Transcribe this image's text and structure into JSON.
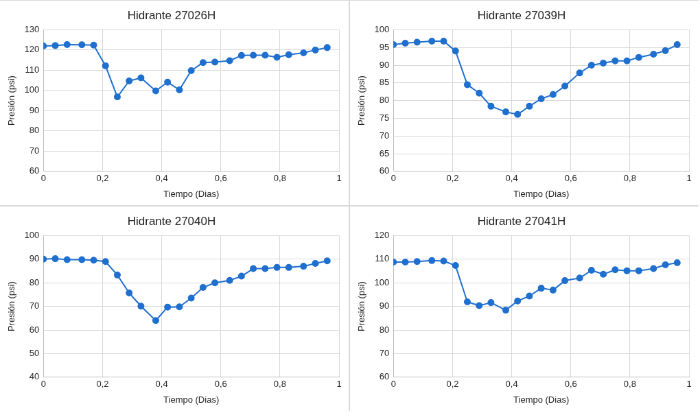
{
  "chart_data": [
    {
      "type": "line",
      "title": "Hidrante 27026H",
      "xlabel": "Tiempo (Dias)",
      "ylabel": "Presión (psi)",
      "x": [
        0,
        0.04,
        0.08,
        0.13,
        0.17,
        0.21,
        0.25,
        0.29,
        0.33,
        0.38,
        0.42,
        0.46,
        0.5,
        0.54,
        0.58,
        0.63,
        0.67,
        0.71,
        0.75,
        0.79,
        0.83,
        0.88,
        0.92,
        0.96
      ],
      "series": [
        {
          "color": "#1f6fcf",
          "values": [
            122,
            122.2,
            122.7,
            122.6,
            122.4,
            112.2,
            96.8,
            104.7,
            106.2,
            99.8,
            104.1,
            100.3,
            109.8,
            113.8,
            114,
            114.7,
            117.3,
            117.4,
            117.4,
            116.4,
            117.7,
            118.6,
            120,
            121.2
          ]
        }
      ],
      "xlim": [
        0,
        1
      ],
      "xticks": [
        {
          "value": 0,
          "label": "0"
        },
        {
          "value": 0.2,
          "label": "0,2"
        },
        {
          "value": 0.4,
          "label": "0,4"
        },
        {
          "value": 0.6,
          "label": "0,6"
        },
        {
          "value": 0.8,
          "label": "0,8"
        },
        {
          "value": 1,
          "label": "1"
        }
      ],
      "ylim": [
        60,
        130
      ],
      "yticks": [
        60,
        70,
        80,
        90,
        100,
        110,
        120,
        130
      ],
      "grid": true,
      "legend": false,
      "marker": "circle",
      "line_style": "solid"
    },
    {
      "type": "line",
      "title": "Hidrante 27039H",
      "xlabel": "Tiempo (Dias)",
      "ylabel": "Presión (psi)",
      "x": [
        0,
        0.04,
        0.08,
        0.13,
        0.17,
        0.21,
        0.25,
        0.29,
        0.33,
        0.38,
        0.42,
        0.46,
        0.5,
        0.54,
        0.58,
        0.63,
        0.67,
        0.71,
        0.75,
        0.79,
        0.83,
        0.88,
        0.92,
        0.96
      ],
      "series": [
        {
          "color": "#1f6fcf",
          "values": [
            95.8,
            96.2,
            96.5,
            96.8,
            96.8,
            94,
            84.5,
            82.1,
            78.4,
            76.8,
            76.1,
            78.4,
            80.5,
            81.7,
            84.1,
            87.8,
            90,
            90.6,
            91.2,
            91.2,
            92.2,
            93.1,
            94.1,
            95.8
          ]
        }
      ],
      "xlim": [
        0,
        1
      ],
      "xticks": [
        {
          "value": 0,
          "label": "0"
        },
        {
          "value": 0.2,
          "label": "0,2"
        },
        {
          "value": 0.4,
          "label": "0,4"
        },
        {
          "value": 0.6,
          "label": "0,6"
        },
        {
          "value": 0.8,
          "label": "0,8"
        },
        {
          "value": 1,
          "label": "1"
        }
      ],
      "ylim": [
        60,
        100
      ],
      "yticks": [
        60,
        65,
        70,
        75,
        80,
        85,
        90,
        95,
        100
      ],
      "grid": true,
      "legend": false,
      "marker": "circle",
      "line_style": "solid"
    },
    {
      "type": "line",
      "title": "Hidrante 27040H",
      "xlabel": "Tiempo (Dias)",
      "ylabel": "Presión (psi)",
      "x": [
        0,
        0.04,
        0.08,
        0.13,
        0.17,
        0.21,
        0.25,
        0.29,
        0.33,
        0.38,
        0.42,
        0.46,
        0.5,
        0.54,
        0.58,
        0.63,
        0.67,
        0.71,
        0.75,
        0.79,
        0.83,
        0.88,
        0.92,
        0.96
      ],
      "series": [
        {
          "color": "#1f6fcf",
          "values": [
            90,
            90.2,
            89.8,
            89.8,
            89.6,
            89,
            83.3,
            75.7,
            70.1,
            64,
            69.7,
            69.8,
            73.5,
            78,
            80,
            81,
            82.8,
            86,
            86,
            86.5,
            86.5,
            87,
            88.2,
            89.3
          ]
        }
      ],
      "xlim": [
        0,
        1
      ],
      "xticks": [
        {
          "value": 0,
          "label": "0"
        },
        {
          "value": 0.2,
          "label": "0,2"
        },
        {
          "value": 0.4,
          "label": "0,4"
        },
        {
          "value": 0.6,
          "label": "0,6"
        },
        {
          "value": 0.8,
          "label": "0,8"
        },
        {
          "value": 1,
          "label": "1"
        }
      ],
      "ylim": [
        40,
        100
      ],
      "yticks": [
        40,
        50,
        60,
        70,
        80,
        90,
        100
      ],
      "grid": true,
      "legend": false,
      "marker": "circle",
      "line_style": "solid"
    },
    {
      "type": "line",
      "title": "Hidrante 27041H",
      "xlabel": "Tiempo (Dias)",
      "ylabel": "Presión (psi)",
      "x": [
        0,
        0.04,
        0.08,
        0.13,
        0.17,
        0.21,
        0.25,
        0.29,
        0.33,
        0.38,
        0.42,
        0.46,
        0.5,
        0.54,
        0.58,
        0.63,
        0.67,
        0.71,
        0.75,
        0.79,
        0.83,
        0.88,
        0.92,
        0.96
      ],
      "series": [
        {
          "color": "#1f6fcf",
          "values": [
            108.8,
            108.8,
            109,
            109.4,
            109.2,
            107.3,
            91.9,
            90.3,
            91.6,
            88.4,
            92.3,
            94.4,
            97.7,
            96.9,
            100.9,
            102,
            105.3,
            103.6,
            105.5,
            105.1,
            105.1,
            106,
            107.6,
            108.5
          ]
        }
      ],
      "xlim": [
        0,
        1
      ],
      "xticks": [
        {
          "value": 0,
          "label": "0"
        },
        {
          "value": 0.2,
          "label": "0,2"
        },
        {
          "value": 0.4,
          "label": "0,4"
        },
        {
          "value": 0.6,
          "label": "0,6"
        },
        {
          "value": 0.8,
          "label": "0,8"
        },
        {
          "value": 1,
          "label": "1"
        }
      ],
      "ylim": [
        60,
        120
      ],
      "yticks": [
        60,
        70,
        80,
        90,
        100,
        110,
        120
      ],
      "grid": true,
      "legend": false,
      "marker": "circle",
      "line_style": "solid"
    }
  ]
}
